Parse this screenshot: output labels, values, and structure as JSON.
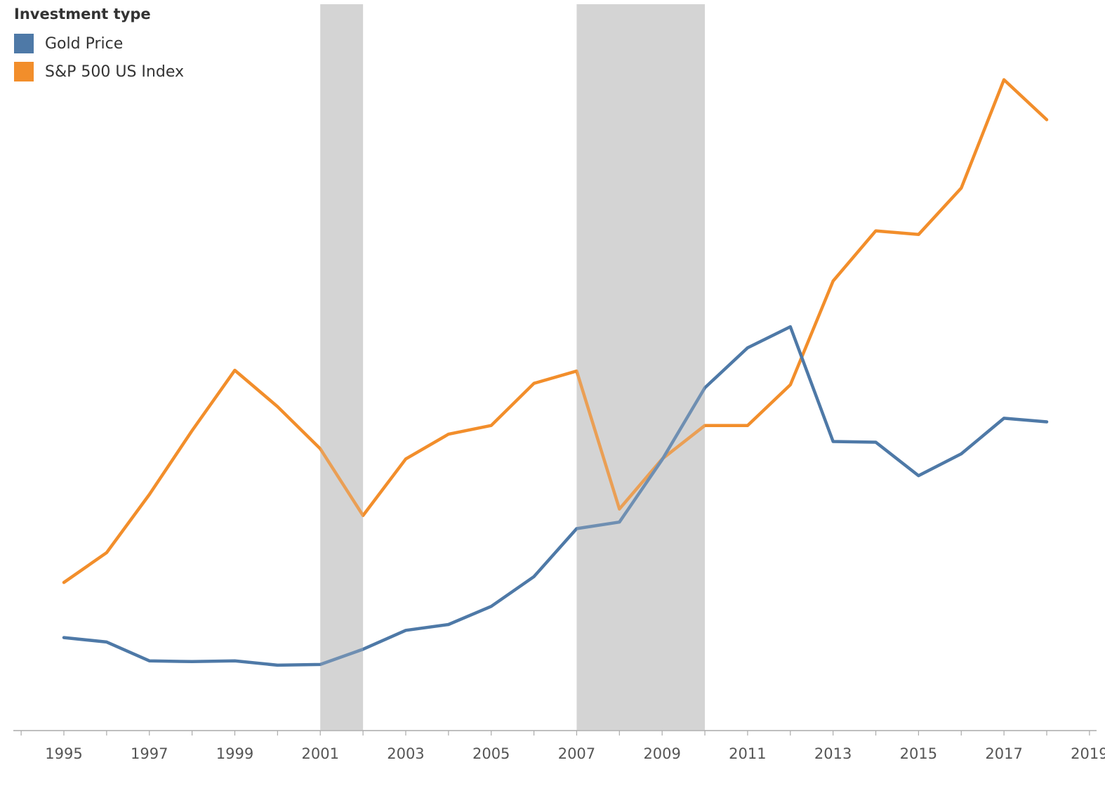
{
  "colors": {
    "gold": "#4e79a7",
    "sp500": "#f28e2b",
    "recession_band": "#d4d4d4",
    "axis": "#aaaaaa",
    "tick_text": "#555555"
  },
  "chart_data": {
    "type": "line",
    "legend_title": "Investment type",
    "legend_position": "top-left",
    "xlim": [
      1994,
      2019.5
    ],
    "ylim": [
      0,
      1
    ],
    "x_ticks": [
      1995,
      1997,
      1999,
      2001,
      2003,
      2005,
      2007,
      2009,
      2011,
      2013,
      2015,
      2017,
      2019
    ],
    "y_axis_visible": false,
    "grid": false,
    "shaded_bands": [
      {
        "start": 2001,
        "end": 2002
      },
      {
        "start": 2007,
        "end": 2010
      }
    ],
    "series": [
      {
        "name": "Gold Price",
        "color": "#4e79a7",
        "x": [
          1995,
          1996,
          1997,
          1998,
          1999,
          2000,
          2001,
          2002,
          2003,
          2004,
          2005,
          2006,
          2007,
          2008,
          2009,
          2010,
          2011,
          2012,
          2013,
          2014,
          2015,
          2016,
          2017,
          2018
        ],
        "values": [
          0.128,
          0.122,
          0.096,
          0.095,
          0.096,
          0.09,
          0.091,
          0.112,
          0.138,
          0.146,
          0.171,
          0.212,
          0.278,
          0.287,
          0.373,
          0.472,
          0.527,
          0.556,
          0.398,
          0.397,
          0.351,
          0.381,
          0.43,
          0.425
        ]
      },
      {
        "name": "S&P 500 US Index",
        "color": "#f28e2b",
        "x": [
          1995,
          1996,
          1997,
          1998,
          1999,
          2000,
          2001,
          2002,
          2003,
          2004,
          2005,
          2006,
          2007,
          2008,
          2009,
          2010,
          2011,
          2012,
          2013,
          2014,
          2015,
          2016,
          2017,
          2018
        ],
        "values": [
          0.204,
          0.245,
          0.325,
          0.413,
          0.496,
          0.446,
          0.388,
          0.296,
          0.374,
          0.408,
          0.42,
          0.478,
          0.495,
          0.305,
          0.374,
          0.42,
          0.42,
          0.476,
          0.619,
          0.688,
          0.683,
          0.747,
          0.896,
          0.841
        ]
      }
    ]
  }
}
